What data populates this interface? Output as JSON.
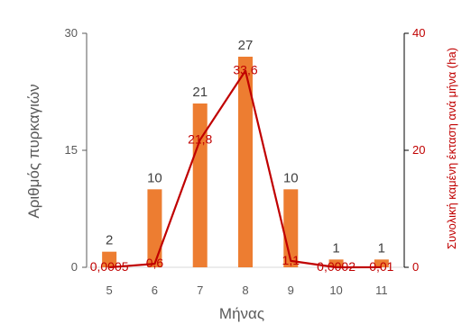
{
  "chart_data": {
    "type": "bar",
    "categories": [
      "5",
      "6",
      "7",
      "8",
      "9",
      "10",
      "11"
    ],
    "xlabel": "Μήνας",
    "ylabel": "Αριθμός πυρκαγιών",
    "y2label": "Συνολική καμένη έκταση ανά μήνα (ha)",
    "ylim": [
      0,
      30
    ],
    "yticks": [
      0,
      15,
      30
    ],
    "y2lim": [
      0,
      40
    ],
    "y2ticks": [
      0,
      20,
      40
    ],
    "grid": false,
    "series": [
      {
        "type": "bar",
        "axis": "left",
        "color": "#ed7d31",
        "values": [
          2,
          10,
          21,
          27,
          10,
          1,
          1
        ],
        "labels": [
          "2",
          "10",
          "21",
          "27",
          "10",
          "1",
          "1"
        ]
      },
      {
        "type": "line",
        "axis": "right",
        "color": "#c00000",
        "values": [
          0.0005,
          0.6,
          21.8,
          33.6,
          1.1,
          0.0002,
          0.01
        ],
        "labels": [
          "0,0005",
          "0,6",
          "21,8",
          "33,6",
          "1,1",
          "0,0002",
          "0,01"
        ]
      }
    ]
  }
}
